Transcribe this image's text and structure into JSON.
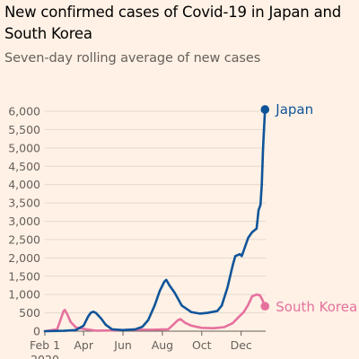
{
  "title": "New confirmed cases of Covid-19 in Japan and South Korea",
  "subtitle": "Seven-day rolling average of new cases",
  "colors": {
    "background": "#fff1e5",
    "gridline": "#e3d9cf",
    "axis_text": "#66605c",
    "japan": "#0f5499",
    "south_korea": "#e5719e"
  },
  "chart_data": {
    "type": "line",
    "title": "New confirmed cases of Covid-19 in Japan and South Korea",
    "subtitle": "Seven-day rolling average of new cases",
    "xlabel": "",
    "ylabel": "",
    "x_tick_labels": [
      "Feb 1",
      "Apr",
      "Jun",
      "Aug",
      "Oct",
      "Dec"
    ],
    "x_tick_dates": [
      "2020-02-01",
      "2020-04-01",
      "2020-06-01",
      "2020-08-01",
      "2020-10-01",
      "2020-12-01"
    ],
    "x_tick_year_label": "2020",
    "x_range": [
      "2020-02-01",
      "2021-01-08"
    ],
    "y_ticks": [
      0,
      500,
      1000,
      1500,
      2000,
      2500,
      3000,
      3500,
      4000,
      4500,
      5000,
      5500,
      6000
    ],
    "y_tick_labels": [
      "0",
      "500",
      "1,000",
      "1,500",
      "2,000",
      "2,500",
      "3,000",
      "3,500",
      "4,000",
      "4,500",
      "5,000",
      "5,500",
      "6,000"
    ],
    "ylim": [
      0,
      6000
    ],
    "grid": true,
    "legend": "direct labels at line ends",
    "series": [
      {
        "name": "Japan",
        "color": "#0f5499",
        "end_marker": true,
        "points": [
          [
            "2020-02-01",
            0
          ],
          [
            "2020-03-01",
            10
          ],
          [
            "2020-03-20",
            30
          ],
          [
            "2020-04-01",
            150
          ],
          [
            "2020-04-08",
            400
          ],
          [
            "2020-04-12",
            500
          ],
          [
            "2020-04-16",
            530
          ],
          [
            "2020-04-20",
            500
          ],
          [
            "2020-04-28",
            350
          ],
          [
            "2020-05-05",
            180
          ],
          [
            "2020-05-15",
            50
          ],
          [
            "2020-06-01",
            30
          ],
          [
            "2020-06-20",
            50
          ],
          [
            "2020-07-01",
            120
          ],
          [
            "2020-07-10",
            300
          ],
          [
            "2020-07-20",
            700
          ],
          [
            "2020-07-28",
            1100
          ],
          [
            "2020-08-04",
            1350
          ],
          [
            "2020-08-07",
            1400
          ],
          [
            "2020-08-12",
            1250
          ],
          [
            "2020-08-20",
            1050
          ],
          [
            "2020-08-31",
            700
          ],
          [
            "2020-09-15",
            520
          ],
          [
            "2020-09-28",
            480
          ],
          [
            "2020-10-10",
            500
          ],
          [
            "2020-10-25",
            550
          ],
          [
            "2020-11-01",
            700
          ],
          [
            "2020-11-10",
            1200
          ],
          [
            "2020-11-18",
            1800
          ],
          [
            "2020-11-22",
            2050
          ],
          [
            "2020-11-29",
            2100
          ],
          [
            "2020-12-02",
            2050
          ],
          [
            "2020-12-06",
            2250
          ],
          [
            "2020-12-12",
            2550
          ],
          [
            "2020-12-18",
            2700
          ],
          [
            "2020-12-25",
            2800
          ],
          [
            "2020-12-28",
            3300
          ],
          [
            "2020-12-31",
            3450
          ],
          [
            "2021-01-02",
            4000
          ],
          [
            "2021-01-04",
            5000
          ],
          [
            "2021-01-07",
            6050
          ]
        ]
      },
      {
        "name": "South Korea",
        "color": "#e5719e",
        "end_marker": true,
        "points": [
          [
            "2020-02-01",
            0
          ],
          [
            "2020-02-20",
            50
          ],
          [
            "2020-02-25",
            300
          ],
          [
            "2020-03-01",
            550
          ],
          [
            "2020-03-03",
            580
          ],
          [
            "2020-03-07",
            450
          ],
          [
            "2020-03-12",
            250
          ],
          [
            "2020-03-20",
            100
          ],
          [
            "2020-04-05",
            50
          ],
          [
            "2020-04-20",
            15
          ],
          [
            "2020-05-15",
            20
          ],
          [
            "2020-06-15",
            40
          ],
          [
            "2020-07-15",
            40
          ],
          [
            "2020-08-10",
            50
          ],
          [
            "2020-08-18",
            180
          ],
          [
            "2020-08-25",
            300
          ],
          [
            "2020-08-29",
            330
          ],
          [
            "2020-09-05",
            230
          ],
          [
            "2020-09-15",
            150
          ],
          [
            "2020-10-01",
            90
          ],
          [
            "2020-10-20",
            80
          ],
          [
            "2020-11-05",
            110
          ],
          [
            "2020-11-18",
            220
          ],
          [
            "2020-11-28",
            400
          ],
          [
            "2020-12-05",
            520
          ],
          [
            "2020-12-12",
            720
          ],
          [
            "2020-12-18",
            950
          ],
          [
            "2020-12-25",
            1000
          ],
          [
            "2020-12-30",
            980
          ],
          [
            "2021-01-03",
            850
          ],
          [
            "2021-01-07",
            680
          ]
        ]
      }
    ]
  }
}
